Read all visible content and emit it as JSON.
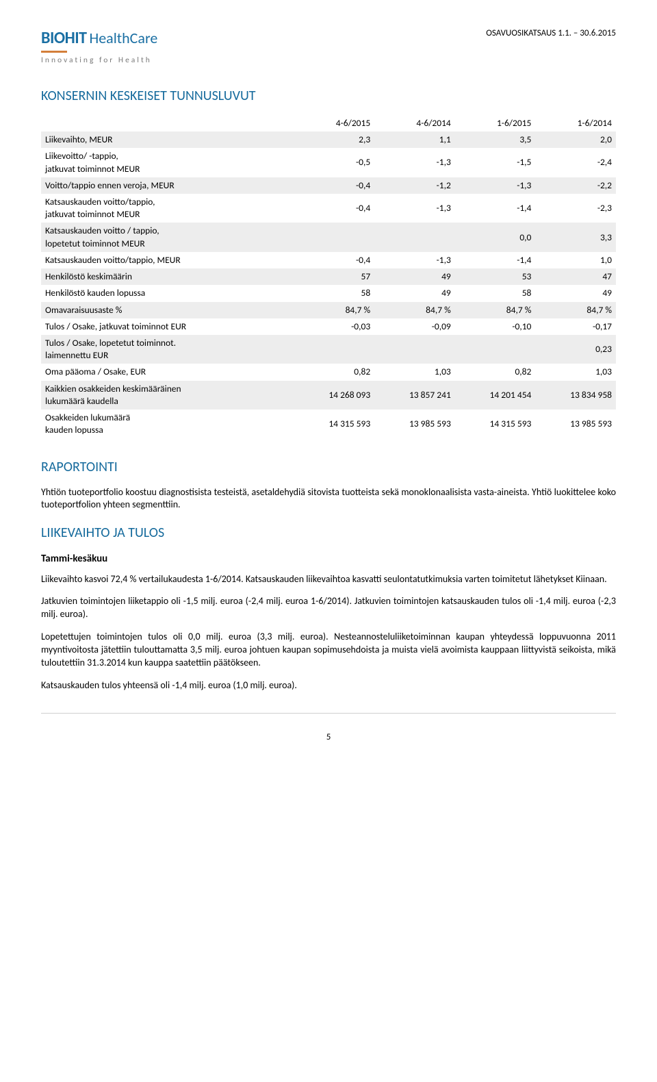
{
  "header": {
    "logo_biohit": "BIOHIT",
    "logo_healthcare": "HealthCare",
    "logo_tagline": "Innovating for Health",
    "doc_title": "OSAVUOSIKATSAUS 1.1. – 30.6.2015"
  },
  "section1": {
    "title": "KONSERNIN KESKEISET TUNNUSLUVUT",
    "table": {
      "periods": [
        "4-6/2015",
        "4-6/2014",
        "1-6/2015",
        "1-6/2014"
      ],
      "rows": [
        {
          "label": "Liikevaihto, MEUR",
          "vals": [
            "2,3",
            "1,1",
            "3,5",
            "2,0"
          ],
          "grey": true
        },
        {
          "label": "Liikevoitto/ -tappio,\njatkuvat toiminnot MEUR",
          "vals": [
            "-0,5",
            "-1,3",
            "-1,5",
            "-2,4"
          ],
          "grey": false
        },
        {
          "label": "Voitto/tappio ennen veroja, MEUR",
          "vals": [
            "-0,4",
            "-1,2",
            "-1,3",
            "-2,2"
          ],
          "grey": true
        },
        {
          "label": "Katsauskauden voitto/tappio,\njatkuvat toiminnot MEUR",
          "vals": [
            "-0,4",
            "-1,3",
            "-1,4",
            "-2,3"
          ],
          "grey": false
        },
        {
          "label": "Katsauskauden voitto / tappio,\nlopetetut toiminnot MEUR",
          "vals": [
            "",
            "",
            "0,0",
            "3,3"
          ],
          "grey": true
        },
        {
          "label": "Katsauskauden voitto/tappio, MEUR",
          "vals": [
            "-0,4",
            "-1,3",
            "-1,4",
            "1,0"
          ],
          "grey": false
        },
        {
          "label": "Henkilöstö keskimäärin",
          "vals": [
            "57",
            "49",
            "53",
            "47"
          ],
          "grey": true
        },
        {
          "label": "Henkilöstö kauden lopussa",
          "vals": [
            "58",
            "49",
            "58",
            "49"
          ],
          "grey": false
        },
        {
          "label": "Omavaraisuusaste %",
          "vals": [
            "84,7 %",
            "84,7 %",
            "84,7 %",
            "84,7 %"
          ],
          "grey": true
        },
        {
          "label": "Tulos / Osake, jatkuvat toiminnot EUR",
          "vals": [
            "-0,03",
            "-0,09",
            "-0,10",
            "-0,17"
          ],
          "grey": false
        },
        {
          "label": "Tulos / Osake, lopetetut toiminnot.\nlaimennettu EUR",
          "vals": [
            "",
            "",
            "",
            "0,23"
          ],
          "grey": true
        },
        {
          "label": "Oma pääoma / Osake, EUR",
          "vals": [
            "0,82",
            "1,03",
            "0,82",
            "1,03"
          ],
          "grey": false
        },
        {
          "label": "Kaikkien osakkeiden keskimääräinen\nlukumäärä kaudella",
          "vals": [
            "14 268 093",
            "13 857 241",
            "14 201 454",
            "13 834 958"
          ],
          "grey": true
        },
        {
          "label": "Osakkeiden lukumäärä\nkauden lopussa",
          "vals": [
            "14 315 593",
            "13 985 593",
            "14 315 593",
            "13 985 593"
          ],
          "grey": false
        }
      ]
    }
  },
  "section2": {
    "title": "RAPORTOINTI",
    "p1": "Yhtiön tuoteportfolio koostuu diagnostisista testeistä, asetaldehydiä sitovista tuotteista sekä monoklonaalisista vasta-aineista. Yhtiö luokittelee koko tuoteportfolion yhteen segmenttiin."
  },
  "section3": {
    "title": "LIIKEVAIHTO JA TULOS",
    "sub": "Tammi-kesäkuu",
    "p1": "Liikevaihto kasvoi 72,4 % vertailukaudesta 1-6/2014. Katsauskauden liikevaihtoa kasvatti seulontatutkimuksia varten toimitetut lähetykset Kiinaan.",
    "p2": "Jatkuvien toimintojen liiketappio oli -1,5 milj. euroa (-2,4 milj. euroa 1-6/2014). Jatkuvien toimintojen katsauskauden tulos oli -1,4 milj. euroa (-2,3 milj. euroa).",
    "p3": "Lopetettujen toimintojen tulos oli 0,0 milj. euroa (3,3 milj. euroa). Nesteannosteluliiketoiminnan kaupan yhteydessä loppuvuonna 2011 myyntivoitosta jätettiin tulouttamatta 3,5 milj. euroa johtuen kaupan sopimusehdoista ja muista vielä avoimista kauppaan liittyvistä seikoista, mikä tuloutettiin 31.3.2014 kun kauppa saatettiin päätökseen.",
    "p4": "Katsauskauden tulos yhteensä oli -1,4 milj. euroa (1,0 milj. euroa)."
  },
  "page_number": "5"
}
